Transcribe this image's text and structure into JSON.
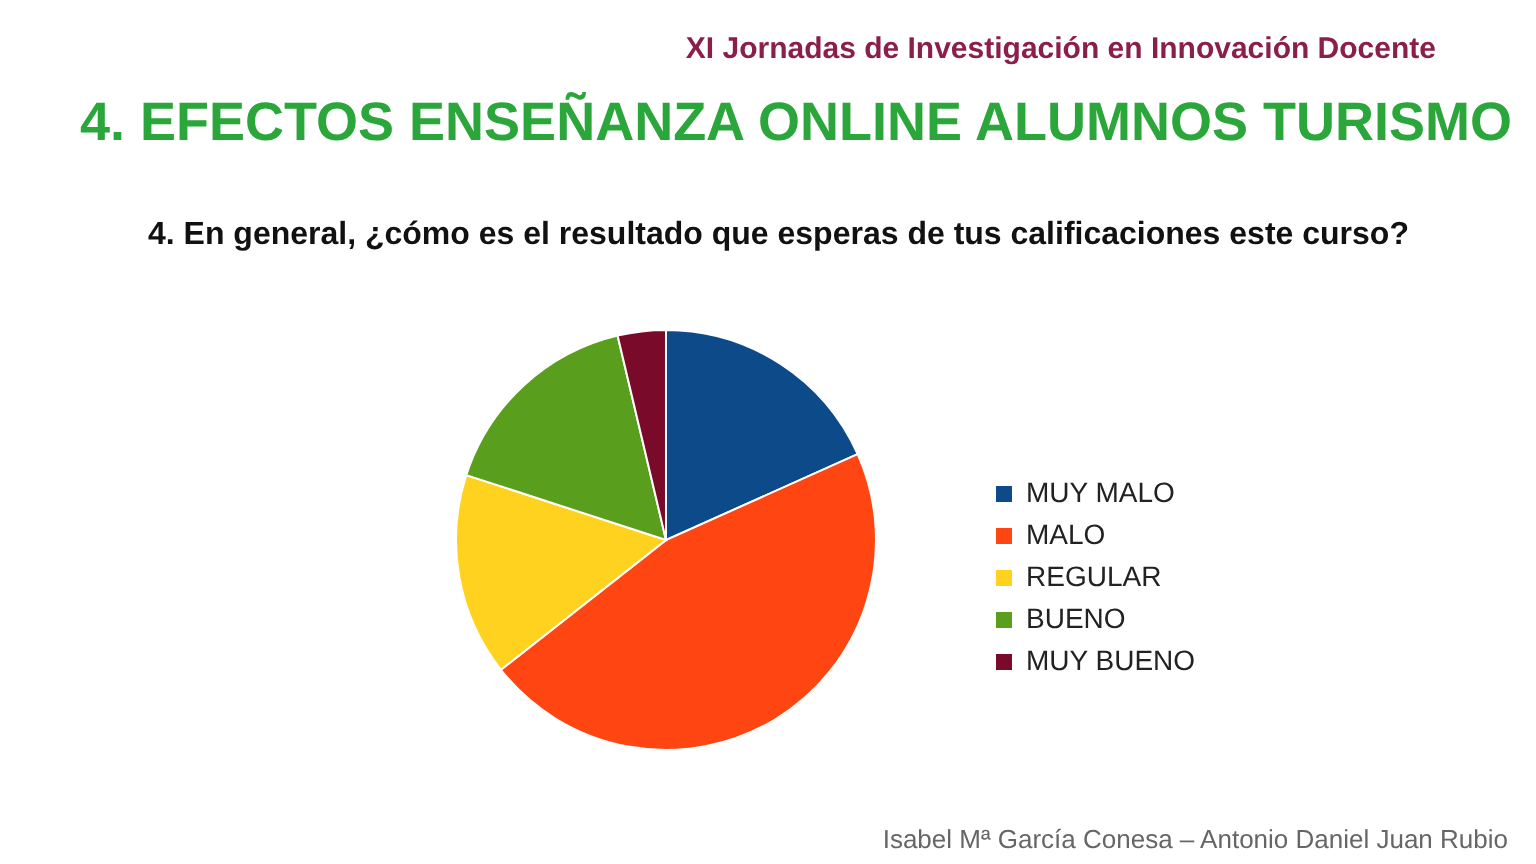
{
  "chart_data": {
    "type": "pie",
    "title": "4. EFECTOS ENSEÑANZA ONLINE ALUMNOS TURISMO",
    "subtitle": "4.   En general, ¿cómo es el resultado que esperas de tus calificaciones este curso?",
    "categories": [
      "MUY MALO",
      "MALO",
      "REGULAR",
      "BUENO",
      "MUY BUENO"
    ],
    "values": [
      18.3,
      46.1,
      15.6,
      16.3,
      3.7
    ],
    "colors": [
      "#0d4a8a",
      "#ff4612",
      "#ffd21f",
      "#5a9e1e",
      "#7a0a2a"
    ],
    "legend": "right",
    "annotations": [
      "XI Jornadas de Investigación en Innovación Docente",
      "Isabel Mª García Conesa – Antonio Daniel Juan Rubio"
    ]
  }
}
